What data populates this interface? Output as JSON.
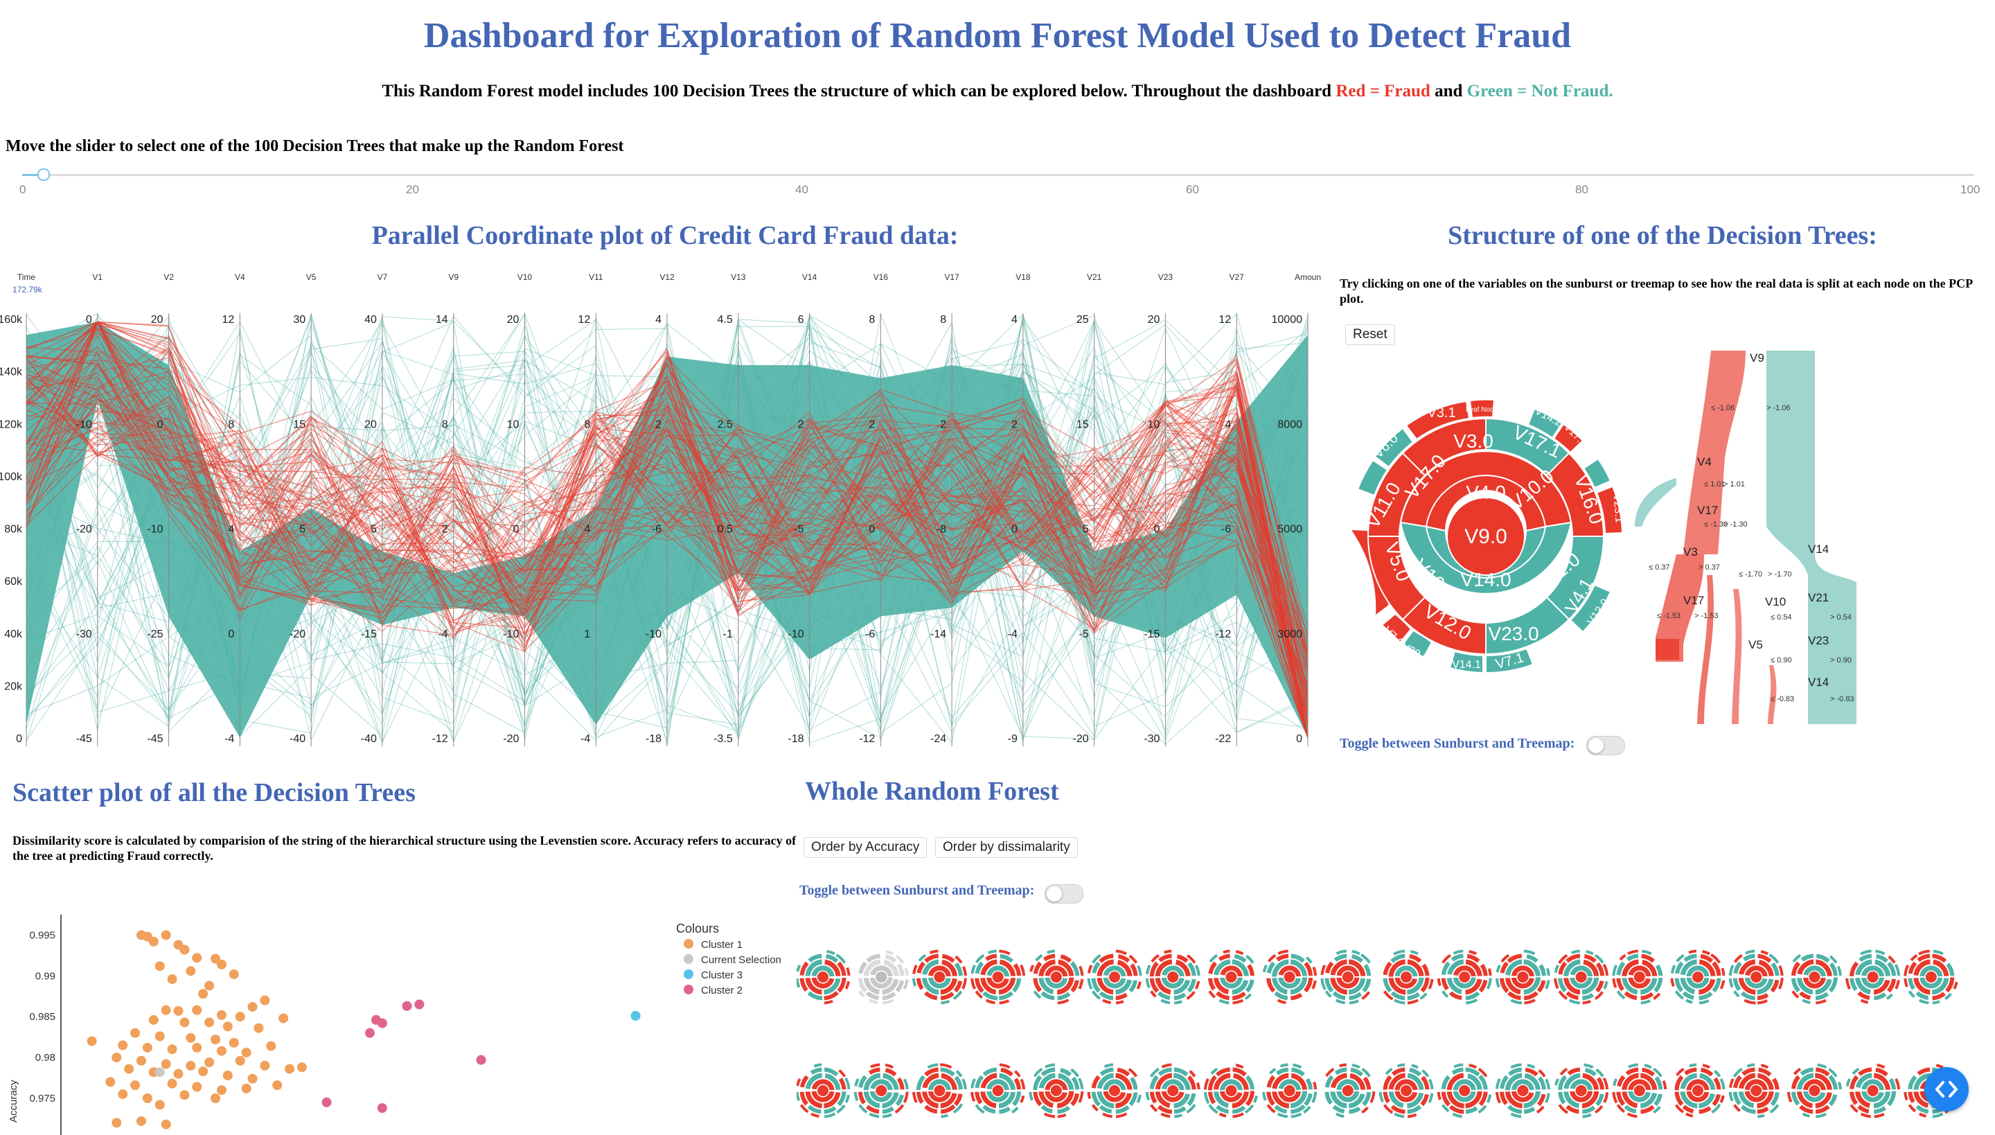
{
  "header": {
    "title": "Dashboard for Exploration of Random Forest Model Used to Detect Fraud",
    "subtitle_prefix": "This Random Forest model includes 100 Decision Trees the structure of which can be explored below. Throughout the dashboard",
    "red_label": "Red = Fraud",
    "and_word": "and",
    "green_label": "Green = Not Fraud."
  },
  "slider": {
    "label": "Move the slider to select one of the 100 Decision Trees that make up the Random Forest",
    "ticks": [
      "0",
      "20",
      "40",
      "60",
      "80",
      "100"
    ],
    "value": 1
  },
  "pcp": {
    "title": "Parallel Coordinate plot of Credit Card Fraud data:",
    "axes": [
      "Time",
      "V1",
      "V2",
      "V4",
      "V5",
      "V7",
      "V9",
      "V10",
      "V11",
      "V12",
      "V13",
      "V14",
      "V16",
      "V17",
      "V18",
      "V21",
      "V23",
      "V27",
      "Amoun"
    ],
    "time_max": "172.79k",
    "tick_sets": [
      [
        "160k",
        "140k",
        "120k",
        "100k",
        "80k",
        "60k",
        "40k",
        "20k",
        "0"
      ],
      [
        "0",
        "-10",
        "-20",
        "-30",
        "-45"
      ],
      [
        "20",
        "0",
        "-10",
        "-25",
        "-45"
      ],
      [
        "12",
        "8",
        "4",
        "0",
        "-4"
      ],
      [
        "30",
        "15",
        "5",
        "-20",
        "-40"
      ],
      [
        "40",
        "20",
        "5",
        "-15",
        "-40"
      ],
      [
        "14",
        "8",
        "2",
        "-4",
        "-12"
      ],
      [
        "20",
        "10",
        "0",
        "-10",
        "-20"
      ],
      [
        "12",
        "8",
        "4",
        "1",
        "-4"
      ],
      [
        "4",
        "2",
        "-6",
        "-10",
        "-18"
      ],
      [
        "4.5",
        "2.5",
        "0.5",
        "-1",
        "-3.5"
      ],
      [
        "6",
        "2",
        "-5",
        "-10",
        "-18"
      ],
      [
        "8",
        "2",
        "0",
        "-6",
        "-12"
      ],
      [
        "8",
        "2",
        "-8",
        "-14",
        "-24"
      ],
      [
        "4",
        "2",
        "0",
        "-4",
        "-9"
      ],
      [
        "25",
        "15",
        "5",
        "-5",
        "-20"
      ],
      [
        "20",
        "10",
        "0",
        "-15",
        "-30"
      ],
      [
        "12",
        "4",
        "-6",
        "-12",
        "-22"
      ],
      [
        "10000",
        "8000",
        "5000",
        "3000",
        "0"
      ]
    ]
  },
  "tree": {
    "title": "Structure of one of the Decision Trees:",
    "instruction": "Try clicking on one of the variables on the sunburst or treemap to see how the real data is split at each node on the PCP plot.",
    "reset_label": "Reset",
    "toggle_label": "Toggle between Sunburst and Treemap:",
    "sunburst": {
      "center": "V9.0",
      "ring1": [
        "V4.0",
        "V14.0"
      ],
      "ring2": [
        "V3.0",
        "V17.0",
        "V11.0",
        "V10.0",
        "V10.1",
        "V5.0",
        "V12.0",
        "V21.0",
        "V23.0",
        "V4.1",
        "V17.1",
        "V16.0"
      ],
      "outer": [
        "V3.1",
        "Leaf Node",
        "V6.0",
        "V14.2",
        "V17.2",
        "V23.1",
        "V16.1",
        "Leaf Node",
        "V7.0",
        "V28.0",
        "V14.1",
        "V7.1",
        "V13.0"
      ]
    },
    "sankey": {
      "nodes": [
        "V9",
        "V4",
        "V17",
        "V3",
        "V17",
        "V14",
        "V10",
        "V5",
        "V21",
        "V23",
        "V14"
      ],
      "split_labels": [
        "≤ -1.06",
        "> -1.06",
        "≤ 1.01",
        "> 1.01",
        "≤ -1.30",
        "> -1.30",
        "≤ 0.37",
        "> 0.37",
        "≤ -1.70",
        "> -1.70",
        "≤ -1.53",
        "> -1.53",
        "≤ 0.54",
        "> 0.54",
        "≤ 0.90",
        "> 0.90",
        "≤ -0.83",
        "> -0.83"
      ]
    }
  },
  "scatter": {
    "title": "Scatter plot of all the Decision Trees",
    "description": "Dissimilarity score is calculated by comparision of the string of the hierarchical structure using the Levenstien score. Accuracy refers to accuracy of the tree at predicting Fraud correctly.",
    "chart_data": {
      "type": "scatter",
      "title": "",
      "ylabel": "Accuracy",
      "xlabel": "",
      "y_ticks": [
        "0.995",
        "0.99",
        "0.985",
        "0.98",
        "0.975"
      ],
      "ylim": [
        0.9705,
        0.9975
      ],
      "xlim": [
        0,
        100
      ],
      "legend_title": "Colours",
      "legend_position": "top-right",
      "series": [
        {
          "name": "Cluster 1",
          "color": "#f0a05a",
          "points": [
            [
              13,
              0.995
            ],
            [
              14,
              0.9948
            ],
            [
              15,
              0.9942
            ],
            [
              17,
              0.995
            ],
            [
              19,
              0.9938
            ],
            [
              20,
              0.9932
            ],
            [
              22,
              0.9922
            ],
            [
              25,
              0.9921
            ],
            [
              26,
              0.9914
            ],
            [
              16,
              0.9912
            ],
            [
              21,
              0.9906
            ],
            [
              18,
              0.9896
            ],
            [
              28,
              0.9902
            ],
            [
              24,
              0.9888
            ],
            [
              23,
              0.9878
            ],
            [
              33,
              0.987
            ],
            [
              31,
              0.9862
            ],
            [
              17,
              0.9858
            ],
            [
              19,
              0.9857
            ],
            [
              22,
              0.9858
            ],
            [
              26,
              0.9852
            ],
            [
              29,
              0.985
            ],
            [
              36,
              0.9848
            ],
            [
              15,
              0.9846
            ],
            [
              20,
              0.9843
            ],
            [
              24,
              0.9843
            ],
            [
              27,
              0.9838
            ],
            [
              32,
              0.9836
            ],
            [
              12,
              0.983
            ],
            [
              16,
              0.9826
            ],
            [
              21,
              0.9824
            ],
            [
              25,
              0.9822
            ],
            [
              28,
              0.9818
            ],
            [
              34,
              0.9814
            ],
            [
              5,
              0.982
            ],
            [
              10,
              0.9815
            ],
            [
              14,
              0.9812
            ],
            [
              18,
              0.981
            ],
            [
              22,
              0.9812
            ],
            [
              26,
              0.9808
            ],
            [
              30,
              0.9806
            ],
            [
              9,
              0.98
            ],
            [
              13,
              0.9796
            ],
            [
              17,
              0.9792
            ],
            [
              21,
              0.979
            ],
            [
              24,
              0.9794
            ],
            [
              29,
              0.9796
            ],
            [
              33,
              0.979
            ],
            [
              39,
              0.9788
            ],
            [
              11,
              0.9786
            ],
            [
              15,
              0.9782
            ],
            [
              19,
              0.978
            ],
            [
              23,
              0.9783
            ],
            [
              27,
              0.9778
            ],
            [
              31,
              0.9774
            ],
            [
              37,
              0.9786
            ],
            [
              8,
              0.977
            ],
            [
              12,
              0.9766
            ],
            [
              18,
              0.9768
            ],
            [
              22,
              0.9764
            ],
            [
              26,
              0.976
            ],
            [
              30,
              0.9762
            ],
            [
              35,
              0.9766
            ],
            [
              10,
              0.9755
            ],
            [
              14,
              0.975
            ],
            [
              20,
              0.9754
            ],
            [
              25,
              0.975
            ],
            [
              9,
              0.972
            ],
            [
              13,
              0.9722
            ],
            [
              17,
              0.9718
            ],
            [
              16,
              0.9742
            ]
          ]
        },
        {
          "name": "Current Selection",
          "color": "#c9c9c9",
          "points": [
            [
              16,
              0.9782
            ]
          ]
        },
        {
          "name": "Cluster 3",
          "color": "#55c2ea",
          "points": [
            [
              93,
              0.9851
            ]
          ]
        },
        {
          "name": "Cluster 2",
          "color": "#e0648a",
          "points": [
            [
              56,
              0.9863
            ],
            [
              51,
              0.9846
            ],
            [
              52,
              0.9842
            ],
            [
              50,
              0.983
            ],
            [
              68,
              0.9797
            ],
            [
              43,
              0.9745
            ],
            [
              52,
              0.9738
            ],
            [
              58,
              0.9865
            ]
          ]
        }
      ]
    }
  },
  "forest": {
    "title": "Whole Random Forest",
    "order_accuracy": "Order by Accuracy",
    "order_dissimilarity": "Order by dissimalarity",
    "toggle_label": "Toggle between Sunburst and Treemap:",
    "tree_count_shown": 40
  },
  "colors": {
    "fraud": "#e8392b",
    "not_fraud": "#4fb2a6",
    "accent": "#4466b5"
  },
  "fab_icon": "code-icon"
}
